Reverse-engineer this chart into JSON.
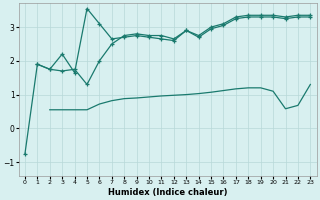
{
  "title": "",
  "xlabel": "Humidex (Indice chaleur)",
  "background_color": "#d8f0f0",
  "line_color": "#1a7a6e",
  "grid_color": "#b8d8d8",
  "xlim": [
    -0.5,
    23.5
  ],
  "ylim": [
    -1.4,
    3.7
  ],
  "xticks": [
    0,
    1,
    2,
    3,
    4,
    5,
    6,
    7,
    8,
    9,
    10,
    11,
    12,
    13,
    14,
    15,
    16,
    17,
    18,
    19,
    20,
    21,
    22,
    23
  ],
  "yticks": [
    -1,
    0,
    1,
    2,
    3
  ],
  "line1_x": [
    0,
    1,
    2,
    3,
    4,
    5,
    6,
    7,
    8,
    9,
    10,
    11,
    12,
    13,
    14,
    15,
    16,
    17,
    18,
    19,
    20,
    21,
    22,
    23
  ],
  "line1_y": [
    -0.75,
    1.9,
    1.75,
    1.7,
    1.75,
    1.3,
    2.0,
    2.5,
    2.75,
    2.8,
    2.75,
    2.75,
    2.65,
    2.9,
    2.75,
    3.0,
    3.1,
    3.3,
    3.35,
    3.35,
    3.35,
    3.3,
    3.35,
    3.35
  ],
  "line2_x": [
    1,
    2,
    3,
    4,
    5,
    6,
    7,
    8,
    9,
    10,
    11,
    12,
    13,
    14,
    15,
    16,
    17,
    18,
    19,
    20,
    21,
    22,
    23
  ],
  "line2_y": [
    1.9,
    1.75,
    2.2,
    1.65,
    3.55,
    3.1,
    2.65,
    2.7,
    2.75,
    2.7,
    2.65,
    2.6,
    2.9,
    2.7,
    2.95,
    3.05,
    3.25,
    3.3,
    3.3,
    3.3,
    3.25,
    3.3,
    3.3
  ],
  "line3_x": [
    2,
    3,
    4,
    5,
    6,
    7,
    8,
    9,
    10,
    11,
    12,
    13,
    14,
    15,
    16,
    17,
    18,
    19,
    20,
    21,
    22,
    23
  ],
  "line3_y": [
    0.55,
    0.55,
    0.55,
    0.55,
    0.72,
    0.82,
    0.88,
    0.9,
    0.93,
    0.96,
    0.98,
    1.0,
    1.03,
    1.07,
    1.12,
    1.17,
    1.2,
    1.2,
    1.1,
    0.58,
    0.68,
    1.3
  ]
}
